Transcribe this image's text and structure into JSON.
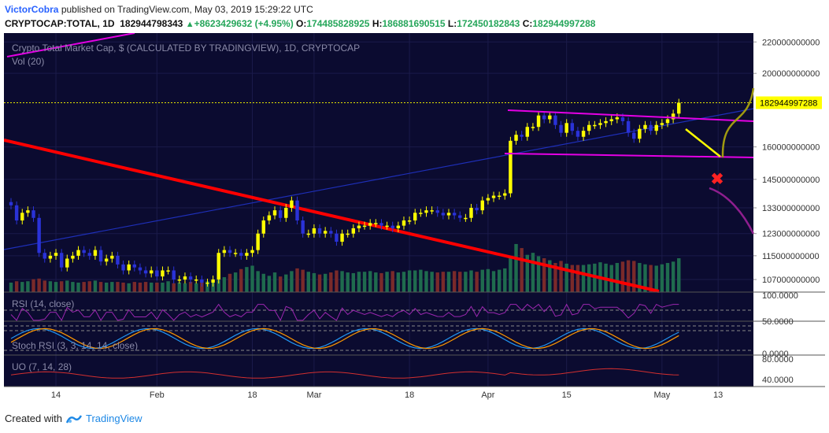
{
  "header": {
    "author": "VictorCobra",
    "published": "published on TradingView.com, May 03, 2019 15:29:22 UTC",
    "symbol": "CRYPTOCAP:TOTAL, 1D",
    "last": "182944798343",
    "change": "+8623429632 (+4.95%)",
    "o_label": "O:",
    "o_val": "174485828925",
    "h_label": "H:",
    "h_val": "186881690515",
    "l_label": "L:",
    "l_val": "172450182843",
    "c_label": "C:",
    "c_val": "182944997288"
  },
  "chart": {
    "title": "Crypto Total Market Cap, $ (CALCULATED BY TRADINGVIEW), 1D, CRYPTOCAP",
    "vol_label": "Vol (20)",
    "price_label": "182944997288",
    "rsi_label": "RSI (14, close)",
    "stoch_label": "Stoch RSI (3, 3, 14, 14, close)",
    "uo_label": "UO (7, 14, 28)"
  },
  "footer": {
    "created": "Created with",
    "brand": "TradingView"
  },
  "colors": {
    "background": "#0b0b30",
    "up": "#ffff00",
    "down": "#2a32d8",
    "vol_up": "#1f6b4e",
    "vol_down": "#7a2a2a",
    "downtrend": "#ff0000",
    "channel": "#e400e4",
    "rsi": "#9c27b0",
    "uo": "#d32f2f"
  },
  "chart_data": {
    "type": "candlestick",
    "title": "Crypto Total Market Cap, $ (CALCULATED BY TRADINGVIEW), 1D, CRYPTOCAP",
    "scale": "log",
    "price_axis_ticks": [
      "220000000000",
      "200000000000",
      "182944997288",
      "160000000000",
      "145000000000",
      "133000000000",
      "123000000000",
      "115000000000",
      "107000000000"
    ],
    "ylim": [
      103000000000,
      226000000000
    ],
    "x_ticks": [
      "14",
      "Feb",
      "18",
      "Mar",
      "18",
      "Apr",
      "15",
      "May",
      "13"
    ],
    "first_date": "2019-01-06",
    "last_date": "2019-05-03",
    "closes": [
      134000000000,
      128000000000,
      131000000000,
      132000000000,
      129000000000,
      116000000000,
      114000000000,
      115000000000,
      116000000000,
      111000000000,
      114000000000,
      115000000000,
      117000000000,
      116000000000,
      115000000000,
      117000000000,
      113000000000,
      114000000000,
      115000000000,
      112000000000,
      110000000000,
      112000000000,
      111000000000,
      110000000000,
      109000000000,
      110000000000,
      108000000000,
      110000000000,
      110000000000,
      107000000000,
      107000000000,
      108000000000,
      107000000000,
      107000000000,
      106000000000,
      106000000000,
      107000000000,
      116000000000,
      117000000000,
      116000000000,
      116000000000,
      115000000000,
      116000000000,
      117000000000,
      123000000000,
      128000000000,
      130000000000,
      132000000000,
      129000000000,
      133000000000,
      136000000000,
      128000000000,
      123000000000,
      123000000000,
      125000000000,
      123000000000,
      124000000000,
      123000000000,
      120000000000,
      123000000000,
      123000000000,
      125000000000,
      126000000000,
      126000000000,
      127000000000,
      127000000000,
      126000000000,
      126000000000,
      125000000000,
      126000000000,
      128000000000,
      128000000000,
      131000000000,
      131000000000,
      132000000000,
      132000000000,
      131000000000,
      130000000000,
      131000000000,
      130000000000,
      129000000000,
      129000000000,
      133000000000,
      132000000000,
      136000000000,
      137000000000,
      138000000000,
      138000000000,
      139000000000,
      163000000000,
      166000000000,
      165000000000,
      170000000000,
      170000000000,
      176000000000,
      174000000000,
      176000000000,
      171000000000,
      167000000000,
      172000000000,
      168000000000,
      165000000000,
      168000000000,
      171000000000,
      171000000000,
      172000000000,
      173000000000,
      174000000000,
      175000000000,
      173000000000,
      167000000000,
      164000000000,
      169000000000,
      171000000000,
      168000000000,
      171000000000,
      172000000000,
      174000000000,
      177000000000,
      182944997288
    ],
    "volume_relative": [
      0.14,
      0.16,
      0.15,
      0.16,
      0.19,
      0.2,
      0.17,
      0.16,
      0.15,
      0.16,
      0.17,
      0.15,
      0.14,
      0.15,
      0.16,
      0.17,
      0.15,
      0.14,
      0.15,
      0.15,
      0.14,
      0.13,
      0.15,
      0.14,
      0.15,
      0.14,
      0.14,
      0.14,
      0.16,
      0.13,
      0.14,
      0.13,
      0.15,
      0.13,
      0.14,
      0.16,
      0.14,
      0.18,
      0.22,
      0.27,
      0.29,
      0.34,
      0.37,
      0.39,
      0.31,
      0.27,
      0.24,
      0.29,
      0.23,
      0.26,
      0.31,
      0.35,
      0.33,
      0.3,
      0.28,
      0.26,
      0.27,
      0.29,
      0.32,
      0.31,
      0.29,
      0.28,
      0.3,
      0.3,
      0.31,
      0.29,
      0.28,
      0.3,
      0.31,
      0.29,
      0.3,
      0.32,
      0.32,
      0.33,
      0.31,
      0.3,
      0.29,
      0.3,
      0.3,
      0.31,
      0.3,
      0.3,
      0.32,
      0.3,
      0.33,
      0.34,
      0.31,
      0.33,
      0.35,
      0.52,
      0.71,
      0.65,
      0.55,
      0.58,
      0.53,
      0.5,
      0.47,
      0.43,
      0.46,
      0.42,
      0.4,
      0.4,
      0.4,
      0.41,
      0.42,
      0.44,
      0.42,
      0.4,
      0.43,
      0.45,
      0.47,
      0.46,
      0.43,
      0.41,
      0.4,
      0.39,
      0.41,
      0.43,
      0.45,
      0.5
    ],
    "indicators": {
      "rsi": {
        "name": "RSI (14, close)",
        "levels": [
          70,
          30
        ],
        "axis": [
          "100.0000",
          "50.0000"
        ]
      },
      "stoch_rsi": {
        "name": "Stoch RSI (3, 3, 14, 14, close)",
        "axis": [
          "0.0000"
        ]
      },
      "uo": {
        "name": "UO (7, 14, 28)",
        "axis": [
          "80.0000",
          "40.0000"
        ]
      }
    }
  }
}
